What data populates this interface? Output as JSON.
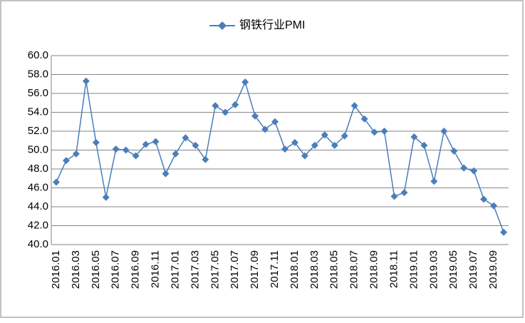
{
  "chart_data": {
    "type": "line",
    "categories": [
      "2016.01",
      null,
      "2016.03",
      null,
      "2016.05",
      null,
      "2016.07",
      null,
      "2016.09",
      null,
      "2016.11",
      null,
      "2017.01",
      null,
      "2017.03",
      null,
      "2017.05",
      null,
      "2017.07",
      null,
      "2017.09",
      null,
      "2017.11",
      null,
      "2018.01",
      null,
      "2018.03",
      null,
      "2018.05",
      null,
      "2018.07",
      null,
      "2018.09",
      null,
      "2018.11",
      null,
      "2019.01",
      null,
      "2019.03",
      null,
      "2019.05",
      null,
      "2019.07",
      null,
      "2019.09",
      null
    ],
    "series": [
      {
        "name": "钢铁行业PMI",
        "color": "#4a7ebb",
        "values": [
          46.6,
          48.9,
          49.6,
          57.3,
          50.8,
          45.0,
          50.1,
          50.0,
          49.4,
          50.6,
          50.9,
          47.5,
          49.6,
          51.3,
          50.5,
          49.0,
          54.7,
          54.0,
          54.8,
          57.2,
          53.6,
          52.2,
          53.0,
          50.1,
          50.8,
          49.4,
          50.5,
          51.6,
          50.5,
          51.5,
          54.7,
          53.3,
          51.9,
          52.0,
          45.1,
          45.5,
          51.4,
          50.5,
          46.7,
          52.0,
          49.9,
          48.1,
          47.8,
          44.8,
          44.1,
          41.3
        ]
      }
    ],
    "ylim": [
      40,
      60
    ],
    "yticks": [
      {
        "value": 40,
        "label": "40.0"
      },
      {
        "value": 42,
        "label": "42.0"
      },
      {
        "value": 44,
        "label": "44.0"
      },
      {
        "value": 46,
        "label": "46.0"
      },
      {
        "value": 48,
        "label": "48.0"
      },
      {
        "value": 50,
        "label": "50.0"
      },
      {
        "value": 52,
        "label": "52.0"
      },
      {
        "value": 54,
        "label": "54.0"
      },
      {
        "value": 56,
        "label": "56.0"
      },
      {
        "value": 58,
        "label": "58.0"
      },
      {
        "value": 60,
        "label": "60.0"
      }
    ],
    "grid": true
  }
}
